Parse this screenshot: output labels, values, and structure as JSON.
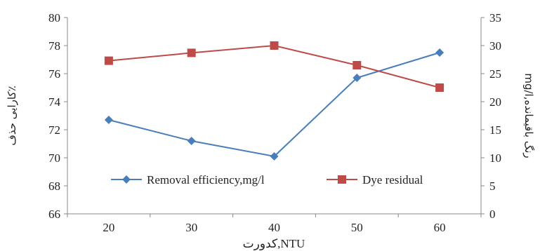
{
  "chart_data": {
    "type": "line",
    "categories": [
      "20",
      "30",
      "40",
      "50",
      "60"
    ],
    "series": [
      {
        "name": "Removal efficiency,mg/l",
        "axis": "left",
        "color": "#4a7ebb",
        "marker": "diamond",
        "values": [
          72.7,
          71.2,
          70.1,
          75.7,
          77.5
        ]
      },
      {
        "name": "Dye residual",
        "axis": "right",
        "color": "#be4b48",
        "marker": "square",
        "values": [
          27.3,
          28.7,
          30.0,
          26.5,
          22.5
        ]
      }
    ],
    "xlabel": "NTU,کدورت",
    "ylabel": "کارایی حذف٪",
    "y2label": "mg/l,رنگ باقیمانده",
    "ylim": [
      66,
      80
    ],
    "yticks": [
      "66",
      "68",
      "70",
      "72",
      "74",
      "76",
      "78",
      "80"
    ],
    "y2lim": [
      0,
      35
    ],
    "y2ticks": [
      "0",
      "5",
      "10",
      "15",
      "20",
      "25",
      "30",
      "35"
    ],
    "grid": false,
    "legend_position": "inside-bottom"
  }
}
